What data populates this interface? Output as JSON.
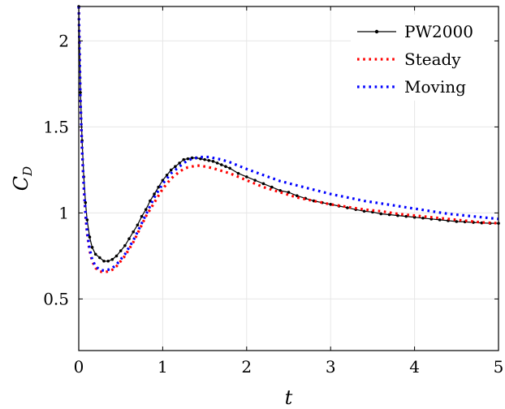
{
  "chart_data": {
    "type": "line",
    "title": "",
    "xlabel": "t",
    "ylabel_main": "C",
    "ylabel_sub": "D",
    "xlim": [
      0,
      5
    ],
    "ylim": [
      0.2,
      2.2
    ],
    "xticks": [
      "0",
      "1",
      "2",
      "3",
      "4",
      "5"
    ],
    "xtick_values": [
      0,
      1,
      2,
      3,
      4,
      5
    ],
    "yticks": [
      "0.5",
      "1",
      "1.5",
      "2"
    ],
    "ytick_values": [
      0.5,
      1,
      1.5,
      2
    ],
    "grid": true,
    "legend_position": "top-right",
    "series": [
      {
        "name": "PW2000",
        "color": "#000000",
        "style": "solid-markers",
        "x": [
          0.0,
          0.02,
          0.04,
          0.06,
          0.08,
          0.1,
          0.13,
          0.16,
          0.2,
          0.25,
          0.3,
          0.35,
          0.4,
          0.45,
          0.5,
          0.55,
          0.6,
          0.65,
          0.7,
          0.75,
          0.8,
          0.85,
          0.9,
          0.95,
          1.0,
          1.05,
          1.1,
          1.15,
          1.2,
          1.25,
          1.3,
          1.35,
          1.4,
          1.45,
          1.5,
          1.55,
          1.6,
          1.65,
          1.7,
          1.75,
          1.8,
          1.9,
          2.0,
          2.1,
          2.2,
          2.3,
          2.4,
          2.5,
          2.6,
          2.7,
          2.8,
          2.9,
          3.0,
          3.1,
          3.2,
          3.3,
          3.4,
          3.5,
          3.6,
          3.7,
          3.8,
          3.9,
          4.0,
          4.1,
          4.2,
          4.3,
          4.4,
          4.5,
          4.6,
          4.7,
          4.8,
          4.9,
          5.0
        ],
        "y": [
          2.2,
          1.7,
          1.42,
          1.21,
          1.06,
          0.96,
          0.86,
          0.8,
          0.76,
          0.74,
          0.72,
          0.72,
          0.73,
          0.75,
          0.78,
          0.81,
          0.85,
          0.89,
          0.93,
          0.98,
          1.02,
          1.07,
          1.11,
          1.15,
          1.19,
          1.22,
          1.25,
          1.27,
          1.29,
          1.31,
          1.315,
          1.32,
          1.32,
          1.315,
          1.31,
          1.305,
          1.3,
          1.29,
          1.28,
          1.27,
          1.26,
          1.23,
          1.21,
          1.19,
          1.17,
          1.15,
          1.13,
          1.12,
          1.1,
          1.085,
          1.07,
          1.06,
          1.05,
          1.04,
          1.03,
          1.02,
          1.01,
          1.005,
          0.995,
          0.99,
          0.985,
          0.98,
          0.975,
          0.97,
          0.965,
          0.96,
          0.955,
          0.95,
          0.948,
          0.945,
          0.942,
          0.94,
          0.94
        ]
      },
      {
        "name": "Steady",
        "color": "#ff0000",
        "style": "dotted",
        "x": [
          0.0,
          0.02,
          0.04,
          0.06,
          0.08,
          0.1,
          0.13,
          0.16,
          0.2,
          0.25,
          0.3,
          0.35,
          0.4,
          0.45,
          0.5,
          0.55,
          0.6,
          0.65,
          0.7,
          0.75,
          0.8,
          0.85,
          0.9,
          0.95,
          1.0,
          1.05,
          1.1,
          1.15,
          1.2,
          1.25,
          1.3,
          1.35,
          1.4,
          1.45,
          1.5,
          1.55,
          1.6,
          1.7,
          1.8,
          1.9,
          2.0,
          2.2,
          2.4,
          2.6,
          2.8,
          3.0,
          3.2,
          3.4,
          3.6,
          3.8,
          4.0,
          4.2,
          4.4,
          4.6,
          4.8,
          5.0
        ],
        "y": [
          2.2,
          1.65,
          1.36,
          1.15,
          0.99,
          0.88,
          0.78,
          0.72,
          0.68,
          0.66,
          0.655,
          0.66,
          0.67,
          0.69,
          0.72,
          0.75,
          0.79,
          0.83,
          0.88,
          0.93,
          0.98,
          1.02,
          1.06,
          1.1,
          1.14,
          1.17,
          1.2,
          1.22,
          1.24,
          1.255,
          1.265,
          1.27,
          1.275,
          1.275,
          1.27,
          1.265,
          1.26,
          1.245,
          1.23,
          1.21,
          1.19,
          1.15,
          1.12,
          1.09,
          1.07,
          1.05,
          1.035,
          1.02,
          1.01,
          0.995,
          0.985,
          0.975,
          0.965,
          0.955,
          0.945,
          0.94
        ]
      },
      {
        "name": "Moving",
        "color": "#0000ff",
        "style": "dotted",
        "x": [
          0.0,
          0.02,
          0.04,
          0.06,
          0.08,
          0.1,
          0.13,
          0.16,
          0.2,
          0.25,
          0.3,
          0.35,
          0.4,
          0.45,
          0.5,
          0.55,
          0.6,
          0.65,
          0.7,
          0.75,
          0.8,
          0.85,
          0.9,
          0.95,
          1.0,
          1.05,
          1.1,
          1.15,
          1.2,
          1.25,
          1.3,
          1.35,
          1.4,
          1.45,
          1.5,
          1.55,
          1.6,
          1.7,
          1.8,
          1.9,
          2.0,
          2.2,
          2.4,
          2.6,
          2.8,
          3.0,
          3.2,
          3.4,
          3.6,
          3.8,
          4.0,
          4.2,
          4.4,
          4.6,
          4.8,
          5.0
        ],
        "y": [
          2.2,
          1.66,
          1.37,
          1.16,
          1.0,
          0.89,
          0.79,
          0.73,
          0.69,
          0.67,
          0.665,
          0.67,
          0.68,
          0.7,
          0.73,
          0.76,
          0.8,
          0.84,
          0.89,
          0.94,
          0.99,
          1.04,
          1.09,
          1.13,
          1.17,
          1.2,
          1.23,
          1.25,
          1.27,
          1.29,
          1.305,
          1.315,
          1.32,
          1.325,
          1.325,
          1.325,
          1.32,
          1.31,
          1.295,
          1.275,
          1.255,
          1.22,
          1.185,
          1.16,
          1.135,
          1.11,
          1.09,
          1.07,
          1.055,
          1.04,
          1.025,
          1.01,
          0.995,
          0.985,
          0.975,
          0.965
        ]
      }
    ]
  }
}
